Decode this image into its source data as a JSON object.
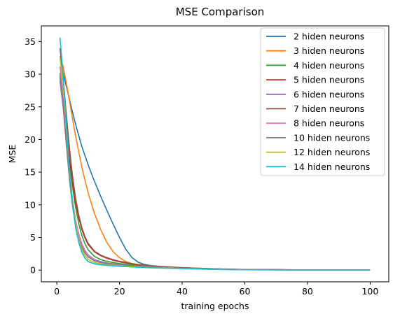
{
  "chart_data": {
    "type": "line",
    "title": "MSE Comparison",
    "xlabel": "training epochs",
    "ylabel": "MSE",
    "xlim": [
      -4.95,
      105.95
    ],
    "ylim": [
      -1.8,
      37.4
    ],
    "xticks": [
      0,
      20,
      40,
      60,
      80,
      100
    ],
    "yticks": [
      0,
      5,
      10,
      15,
      20,
      25,
      30,
      35
    ],
    "grid": false,
    "legend_position": "top-right",
    "series": [
      {
        "name": "2 hiden neurons",
        "color": "#1f77b4",
        "x": [
          1,
          2,
          3,
          4,
          5,
          6,
          8,
          10,
          12,
          14,
          16,
          18,
          20,
          22,
          24,
          26,
          28,
          30,
          35,
          40,
          50,
          60,
          80,
          100
        ],
        "y": [
          31.0,
          30.2,
          28.2,
          26.2,
          24.2,
          22.3,
          18.9,
          16.1,
          13.6,
          11.3,
          9.1,
          7.0,
          5.0,
          3.2,
          1.9,
          1.2,
          0.85,
          0.7,
          0.45,
          0.3,
          0.15,
          0.07,
          0.03,
          0.02
        ]
      },
      {
        "name": "3 hiden neurons",
        "color": "#ff7f0e",
        "x": [
          1,
          2,
          3,
          4,
          5,
          6,
          8,
          10,
          12,
          14,
          16,
          18,
          20,
          22,
          24,
          26,
          28,
          30,
          35,
          40,
          50,
          60,
          80,
          100
        ],
        "y": [
          32.8,
          31.2,
          28.7,
          26.0,
          23.2,
          20.5,
          15.7,
          11.8,
          8.7,
          6.2,
          4.2,
          2.8,
          1.9,
          1.3,
          1.0,
          0.85,
          0.75,
          0.65,
          0.5,
          0.35,
          0.18,
          0.08,
          0.03,
          0.02
        ]
      },
      {
        "name": "4 hiden neurons",
        "color": "#2ca02c",
        "x": [
          1,
          2,
          3,
          4,
          5,
          6,
          7,
          8,
          9,
          10,
          12,
          14,
          16,
          18,
          20,
          25,
          30,
          40,
          50,
          60,
          80,
          100
        ],
        "y": [
          30.2,
          26.5,
          21.5,
          16.8,
          12.8,
          9.6,
          7.1,
          5.3,
          4.0,
          3.1,
          2.1,
          1.6,
          1.35,
          1.15,
          1.0,
          0.75,
          0.55,
          0.3,
          0.15,
          0.07,
          0.03,
          0.02
        ]
      },
      {
        "name": "5 hiden neurons",
        "color": "#d62728",
        "x": [
          1,
          2,
          3,
          4,
          5,
          6,
          7,
          8,
          9,
          10,
          12,
          14,
          16,
          18,
          20,
          25,
          30,
          40,
          50,
          60,
          80,
          100
        ],
        "y": [
          29.5,
          26.2,
          21.8,
          17.3,
          13.5,
          10.4,
          8.0,
          6.2,
          4.9,
          3.9,
          2.8,
          2.2,
          1.8,
          1.5,
          1.25,
          0.85,
          0.6,
          0.35,
          0.18,
          0.08,
          0.03,
          0.02
        ]
      },
      {
        "name": "6 hiden neurons",
        "color": "#9467bd",
        "x": [
          1,
          2,
          3,
          4,
          5,
          6,
          7,
          8,
          9,
          10,
          12,
          14,
          16,
          18,
          20,
          25,
          30,
          40,
          50,
          60,
          80,
          100
        ],
        "y": [
          29.0,
          25.0,
          19.5,
          14.5,
          10.5,
          7.5,
          5.5,
          4.0,
          3.0,
          2.3,
          1.6,
          1.3,
          1.1,
          0.95,
          0.85,
          0.65,
          0.5,
          0.3,
          0.15,
          0.07,
          0.03,
          0.02
        ]
      },
      {
        "name": "7 hiden neurons",
        "color": "#8c564b",
        "x": [
          1,
          2,
          3,
          4,
          5,
          6,
          7,
          8,
          9,
          10,
          12,
          14,
          16,
          18,
          20,
          25,
          30,
          40,
          50,
          60,
          80,
          100
        ],
        "y": [
          34.0,
          29.5,
          24.0,
          18.8,
          14.4,
          11.0,
          8.4,
          6.5,
          5.1,
          4.1,
          2.9,
          2.3,
          1.9,
          1.6,
          1.35,
          0.9,
          0.65,
          0.38,
          0.2,
          0.09,
          0.03,
          0.02
        ]
      },
      {
        "name": "8 hiden neurons",
        "color": "#e377c2",
        "x": [
          1,
          2,
          3,
          4,
          5,
          6,
          7,
          8,
          9,
          10,
          12,
          14,
          16,
          18,
          20,
          25,
          30,
          40,
          50,
          60,
          80,
          100
        ],
        "y": [
          31.2,
          27.0,
          21.0,
          15.3,
          10.9,
          7.6,
          5.4,
          3.9,
          2.9,
          2.2,
          1.5,
          1.2,
          1.0,
          0.9,
          0.8,
          0.6,
          0.45,
          0.28,
          0.14,
          0.06,
          0.03,
          0.02
        ]
      },
      {
        "name": "10 hiden neurons",
        "color": "#7f7f7f",
        "x": [
          1,
          2,
          3,
          4,
          5,
          6,
          7,
          8,
          9,
          10,
          12,
          14,
          16,
          18,
          20,
          25,
          30,
          40,
          50,
          60,
          80,
          100
        ],
        "y": [
          29.8,
          25.5,
          19.5,
          14.0,
          9.8,
          6.8,
          4.8,
          3.5,
          2.6,
          2.0,
          1.4,
          1.15,
          1.0,
          0.9,
          0.8,
          0.6,
          0.45,
          0.28,
          0.14,
          0.06,
          0.03,
          0.02
        ]
      },
      {
        "name": "12 hiden neurons",
        "color": "#bcbd22",
        "x": [
          1,
          2,
          3,
          4,
          5,
          6,
          7,
          8,
          9,
          10,
          12,
          14,
          16,
          18,
          20,
          25,
          30,
          40,
          50,
          60,
          80,
          100
        ],
        "y": [
          32.5,
          28.5,
          22.0,
          15.5,
          10.5,
          7.0,
          4.6,
          3.1,
          2.2,
          1.6,
          1.15,
          0.95,
          0.85,
          0.75,
          0.68,
          0.52,
          0.4,
          0.25,
          0.12,
          0.05,
          0.02,
          0.02
        ]
      },
      {
        "name": "14 hiden neurons",
        "color": "#17becf",
        "x": [
          1,
          2,
          3,
          4,
          5,
          6,
          7,
          8,
          9,
          10,
          12,
          14,
          16,
          18,
          20,
          25,
          30,
          40,
          50,
          60,
          80,
          100
        ],
        "y": [
          35.6,
          30.0,
          22.5,
          15.5,
          10.2,
          6.5,
          4.2,
          2.7,
          1.8,
          1.3,
          0.95,
          0.8,
          0.72,
          0.65,
          0.58,
          0.45,
          0.35,
          0.22,
          0.11,
          0.05,
          0.02,
          0.02
        ]
      }
    ]
  }
}
